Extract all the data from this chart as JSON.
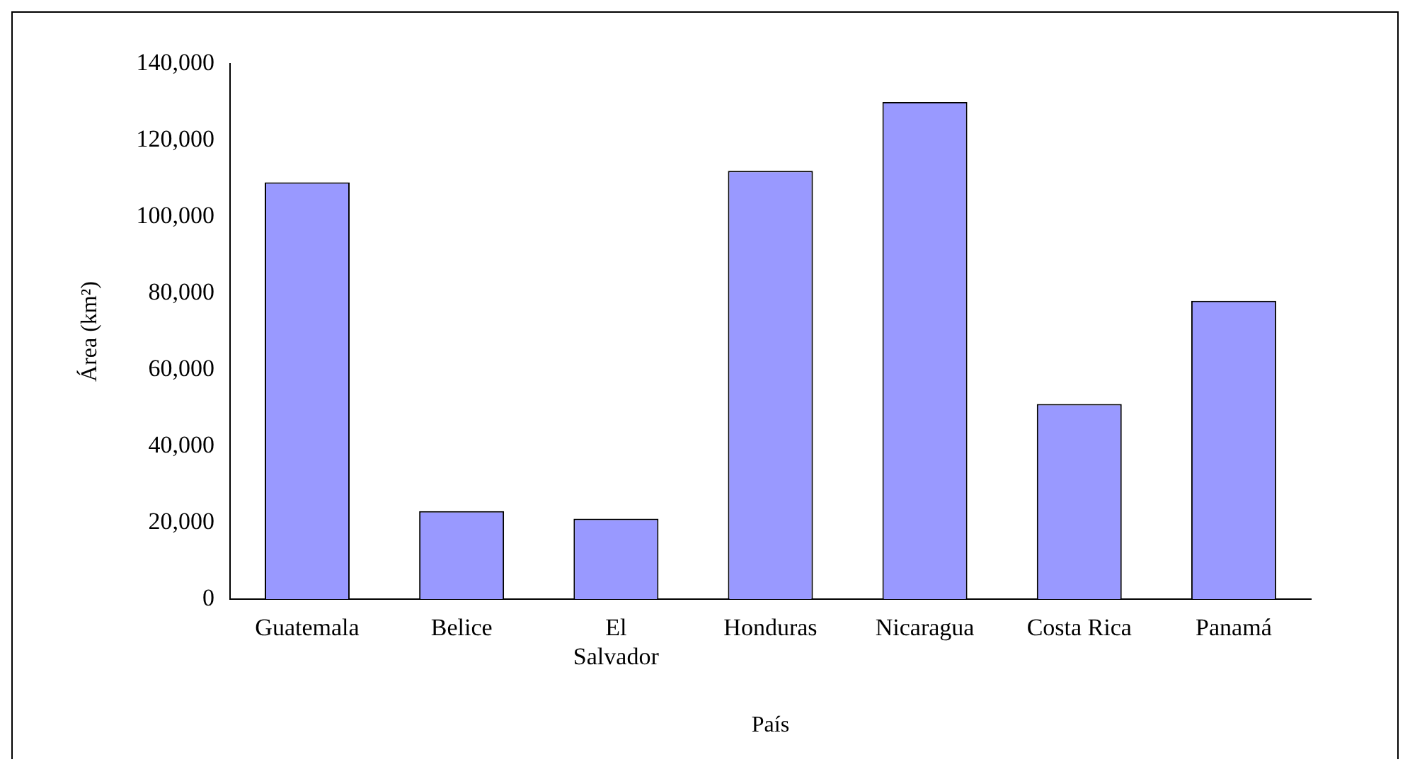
{
  "chart_data": {
    "type": "bar",
    "xlabel": "País",
    "ylabel": "Área (km²)",
    "categories": [
      "Guatemala",
      "Belice",
      "El Salvador",
      "Honduras",
      "Nicaragua",
      "Costa Rica",
      "Panamá"
    ],
    "values": [
      109000,
      23000,
      21000,
      112000,
      130000,
      51000,
      78000
    ],
    "color": "#9999ff",
    "ylim": [
      0,
      140000
    ],
    "yticks": [
      0,
      {
        "value": 20000,
        "label": "20,000"
      },
      {
        "value": 40000,
        "label": "40,000"
      },
      {
        "value": 60000,
        "label": "60,000"
      },
      {
        "value": 80000,
        "label": "80,000"
      },
      {
        "value": 100000,
        "label": "100,000"
      },
      {
        "value": 120000,
        "label": "120,000"
      },
      {
        "value": 140000,
        "label": "140,000"
      }
    ],
    "grid": false,
    "legend": false
  }
}
